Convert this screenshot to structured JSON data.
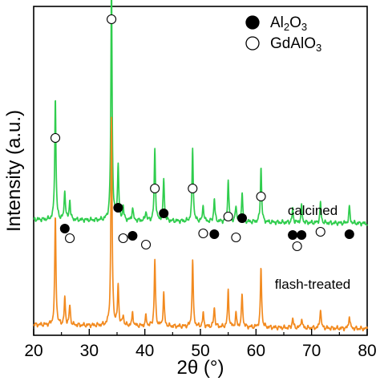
{
  "chart_data": {
    "type": "line",
    "xlabel": "2θ (°)",
    "ylabel": "Intensity (a.u.)",
    "xlim": [
      20,
      80
    ],
    "xticks": [
      20,
      30,
      40,
      50,
      60,
      70,
      80
    ],
    "ylim": [
      0,
      100
    ],
    "y_tick_labels": false,
    "grid": false,
    "legend": {
      "placement": "top-right",
      "entries": [
        {
          "marker": "filled-circle",
          "label_base": "Al",
          "sub1": "2",
          "mid": "O",
          "sub2": "3"
        },
        {
          "marker": "open-circle",
          "label_base": "GdAlO",
          "sub1": "3",
          "mid": "",
          "sub2": ""
        }
      ]
    },
    "series": [
      {
        "name": "calcined",
        "color": "#2fcd4d",
        "baseline": 34,
        "peaks": [
          [
            23.9,
            37
          ],
          [
            25.6,
            9
          ],
          [
            26.5,
            6
          ],
          [
            34.0,
            72
          ],
          [
            35.2,
            17
          ],
          [
            36.1,
            4
          ],
          [
            37.8,
            4
          ],
          [
            40.2,
            3
          ],
          [
            41.8,
            22
          ],
          [
            43.4,
            13
          ],
          [
            48.6,
            22
          ],
          [
            50.5,
            5
          ],
          [
            52.5,
            7
          ],
          [
            55.0,
            13
          ],
          [
            56.4,
            5
          ],
          [
            57.5,
            9
          ],
          [
            60.9,
            17
          ],
          [
            66.6,
            4
          ],
          [
            68.2,
            5
          ],
          [
            71.6,
            6
          ],
          [
            76.8,
            5
          ]
        ],
        "al2o3_markers": [
          25.6,
          35.2,
          37.8,
          43.4,
          52.5,
          57.5,
          66.6,
          68.2,
          76.8
        ],
        "gdalo3_markers": [
          23.9,
          26.5,
          34.0,
          36.1,
          40.2,
          41.8,
          48.6,
          50.5,
          55.0,
          56.4,
          60.9,
          67.4,
          71.6
        ]
      },
      {
        "name": "flash-treated",
        "color": "#f28a1f",
        "baseline": 2,
        "peaks": [
          [
            23.9,
            33
          ],
          [
            25.6,
            8
          ],
          [
            26.5,
            6
          ],
          [
            34.0,
            63
          ],
          [
            35.2,
            12
          ],
          [
            36.1,
            3
          ],
          [
            37.8,
            4
          ],
          [
            40.2,
            3
          ],
          [
            41.8,
            20
          ],
          [
            43.4,
            10
          ],
          [
            48.6,
            20
          ],
          [
            50.5,
            4
          ],
          [
            52.5,
            6
          ],
          [
            55.0,
            11
          ],
          [
            56.4,
            4
          ],
          [
            57.5,
            10
          ],
          [
            60.9,
            18
          ],
          [
            66.6,
            3
          ],
          [
            68.2,
            3
          ],
          [
            71.6,
            6
          ],
          [
            76.8,
            4
          ]
        ]
      }
    ]
  }
}
